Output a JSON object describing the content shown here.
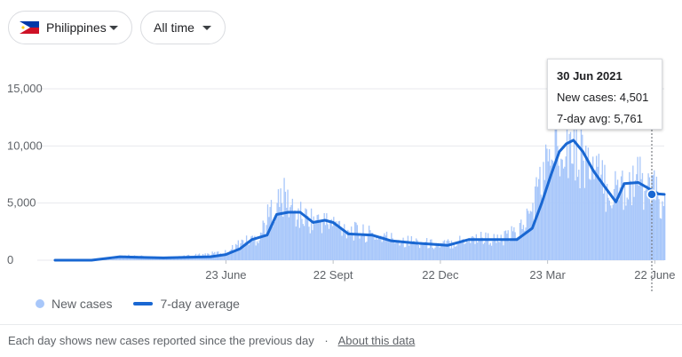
{
  "controls": {
    "country": "Philippines",
    "range": "All time"
  },
  "tooltip": {
    "date": "30 Jun 2021",
    "new_cases": "New cases: 4,501",
    "avg": "7-day avg: 5,761"
  },
  "legend": {
    "new_cases": "New cases",
    "avg": "7-day average"
  },
  "footer": {
    "note": "Each day shows new cases reported since the previous day",
    "separator": "·",
    "link": "About this data"
  },
  "colors": {
    "bars": "#a8c7fa",
    "line": "#1967d2",
    "grid": "#e8eaed",
    "axis_text": "#5f6368"
  },
  "chart_data": {
    "type": "bar",
    "title": "",
    "xlabel": "",
    "ylabel": "",
    "ylim": [
      0,
      15000
    ],
    "yticks": [
      0,
      5000,
      10000,
      15000
    ],
    "ytick_labels": [
      "0",
      "5,000",
      "10,000",
      "15,000"
    ],
    "x_range": [
      "2020-01-30",
      "2021-06-30"
    ],
    "xticks": [
      {
        "date": "2020-06-23",
        "label": "23 June"
      },
      {
        "date": "2020-09-22",
        "label": "22 Sept"
      },
      {
        "date": "2020-12-22",
        "label": "22 Dec"
      },
      {
        "date": "2021-03-23",
        "label": "23 Mar"
      },
      {
        "date": "2021-06-22",
        "label": "22 June"
      }
    ],
    "series": [
      {
        "name": "New cases",
        "kind": "bar",
        "points": [
          [
            "2020-01-30",
            0
          ],
          [
            "2020-03-15",
            50
          ],
          [
            "2020-04-01",
            400
          ],
          [
            "2020-04-20",
            250
          ],
          [
            "2020-05-10",
            250
          ],
          [
            "2020-06-01",
            450
          ],
          [
            "2020-06-23",
            700
          ],
          [
            "2020-07-05",
            1500
          ],
          [
            "2020-07-20",
            2000
          ],
          [
            "2020-08-01",
            4500
          ],
          [
            "2020-08-12",
            5500
          ],
          [
            "2020-08-20",
            4000
          ],
          [
            "2020-09-05",
            3500
          ],
          [
            "2020-09-22",
            3200
          ],
          [
            "2020-10-10",
            2500
          ],
          [
            "2020-10-25",
            2200
          ],
          [
            "2020-11-15",
            1800
          ],
          [
            "2020-12-01",
            1600
          ],
          [
            "2020-12-22",
            1300
          ],
          [
            "2021-01-10",
            1800
          ],
          [
            "2021-01-25",
            2000
          ],
          [
            "2021-02-10",
            1700
          ],
          [
            "2021-02-25",
            2500
          ],
          [
            "2021-03-08",
            4000
          ],
          [
            "2021-03-15",
            6500
          ],
          [
            "2021-03-23",
            8500
          ],
          [
            "2021-03-29",
            10500
          ],
          [
            "2021-04-05",
            11500
          ],
          [
            "2021-04-12",
            10000
          ],
          [
            "2021-04-20",
            9500
          ],
          [
            "2021-05-01",
            7500
          ],
          [
            "2021-05-15",
            6000
          ],
          [
            "2021-05-25",
            6500
          ],
          [
            "2021-06-05",
            7000
          ],
          [
            "2021-06-15",
            6500
          ],
          [
            "2021-06-22",
            5800
          ],
          [
            "2021-06-30",
            4501
          ]
        ]
      },
      {
        "name": "7-day average",
        "kind": "line",
        "points": [
          [
            "2020-01-30",
            0
          ],
          [
            "2020-03-01",
            0
          ],
          [
            "2020-03-25",
            300
          ],
          [
            "2020-04-10",
            250
          ],
          [
            "2020-05-01",
            200
          ],
          [
            "2020-05-20",
            250
          ],
          [
            "2020-06-10",
            300
          ],
          [
            "2020-06-23",
            500
          ],
          [
            "2020-07-05",
            1000
          ],
          [
            "2020-07-15",
            1800
          ],
          [
            "2020-07-28",
            2200
          ],
          [
            "2020-08-05",
            4000
          ],
          [
            "2020-08-15",
            4200
          ],
          [
            "2020-08-25",
            4200
          ],
          [
            "2020-09-05",
            3300
          ],
          [
            "2020-09-15",
            3500
          ],
          [
            "2020-09-22",
            3300
          ],
          [
            "2020-10-05",
            2300
          ],
          [
            "2020-10-25",
            2200
          ],
          [
            "2020-11-10",
            1700
          ],
          [
            "2020-12-01",
            1500
          ],
          [
            "2020-12-15",
            1400
          ],
          [
            "2020-12-28",
            1300
          ],
          [
            "2021-01-15",
            1800
          ],
          [
            "2021-02-05",
            1800
          ],
          [
            "2021-02-25",
            1800
          ],
          [
            "2021-03-10",
            2800
          ],
          [
            "2021-03-18",
            5000
          ],
          [
            "2021-03-26",
            7500
          ],
          [
            "2021-04-02",
            9500
          ],
          [
            "2021-04-08",
            10200
          ],
          [
            "2021-04-14",
            10500
          ],
          [
            "2021-04-22",
            9500
          ],
          [
            "2021-05-01",
            7800
          ],
          [
            "2021-05-10",
            6500
          ],
          [
            "2021-05-20",
            5100
          ],
          [
            "2021-05-27",
            6700
          ],
          [
            "2021-06-08",
            6800
          ],
          [
            "2021-06-18",
            6200
          ],
          [
            "2021-06-25",
            5800
          ],
          [
            "2021-06-30",
            5761
          ]
        ]
      }
    ],
    "grid": true,
    "legend_position": "bottom-left",
    "highlight": {
      "date": "2021-06-30",
      "new_cases": 4501,
      "avg": 5761
    }
  }
}
